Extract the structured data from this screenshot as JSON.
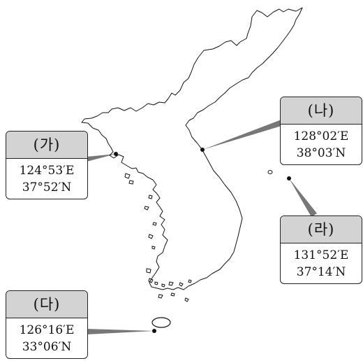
{
  "labels": [
    {
      "id": "ga",
      "name": "(가)",
      "lon": "124°53′E",
      "lat": "37°52′N"
    },
    {
      "id": "na",
      "name": "(나)",
      "lon": "128°02′E",
      "lat": "38°03′N"
    },
    {
      "id": "da",
      "name": "(다)",
      "lon": "126°16′E",
      "lat": "33°06′N"
    },
    {
      "id": "ra",
      "name": "(라)",
      "lon": "131°52′E",
      "lat": "37°14′N"
    }
  ],
  "colors": {
    "header": "#d3d3d3",
    "border": "#222222",
    "coast": "#111111",
    "leader": "#777777"
  }
}
